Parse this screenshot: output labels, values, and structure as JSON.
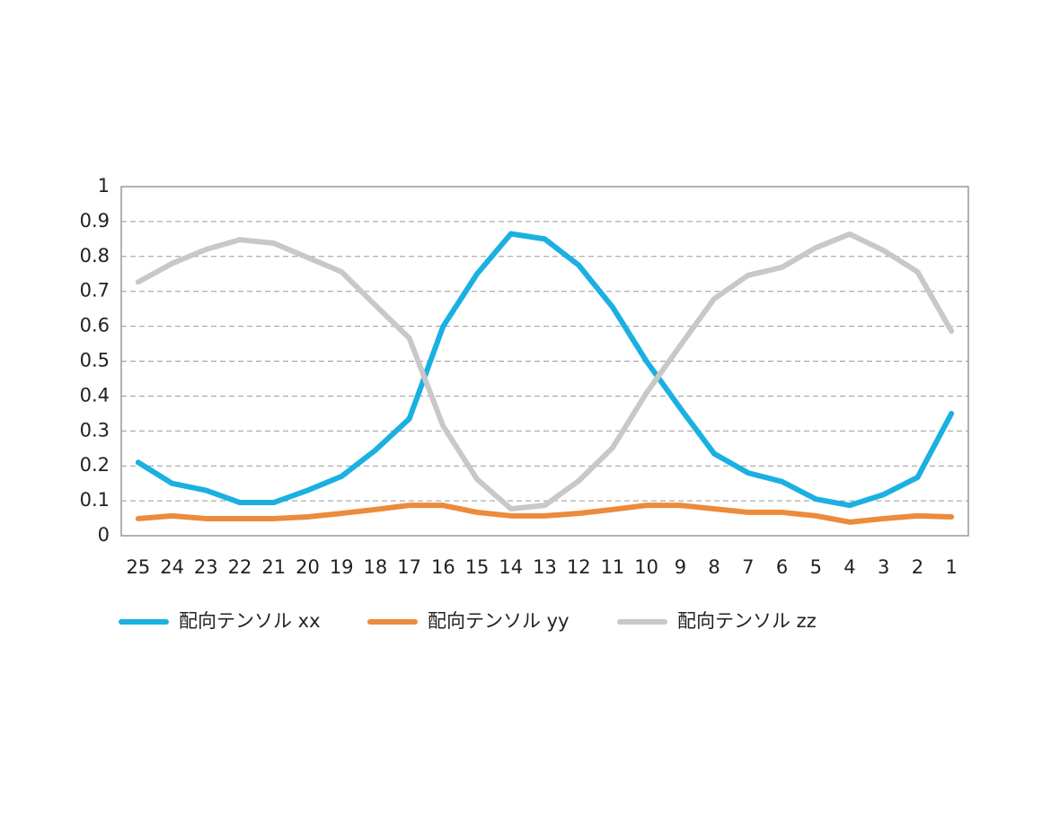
{
  "chart_data": {
    "type": "line",
    "categories": [
      "25",
      "24",
      "23",
      "22",
      "21",
      "20",
      "19",
      "18",
      "17",
      "16",
      "15",
      "14",
      "13",
      "12",
      "11",
      "10",
      "9",
      "8",
      "7",
      "6",
      "5",
      "4",
      "3",
      "2",
      "1"
    ],
    "series": [
      {
        "name": "配向テンソル xx",
        "color": "#1ab0e2",
        "values": [
          0.21,
          0.15,
          0.13,
          0.095,
          0.095,
          0.13,
          0.17,
          0.245,
          0.335,
          0.6,
          0.75,
          0.865,
          0.85,
          0.775,
          0.655,
          0.5,
          0.365,
          0.235,
          0.18,
          0.155,
          0.105,
          0.087,
          0.118,
          0.167,
          0.35
        ]
      },
      {
        "name": "配向テンソル yy",
        "color": "#ec8b3b",
        "values": [
          0.049,
          0.057,
          0.049,
          0.049,
          0.049,
          0.054,
          0.064,
          0.075,
          0.087,
          0.087,
          0.067,
          0.057,
          0.057,
          0.064,
          0.075,
          0.087,
          0.087,
          0.077,
          0.067,
          0.067,
          0.057,
          0.039,
          0.049,
          0.057,
          0.054
        ]
      },
      {
        "name": "配向テンソル zz",
        "color": "#c8c8c8",
        "values": [
          0.727,
          0.78,
          0.82,
          0.848,
          0.838,
          0.797,
          0.756,
          0.66,
          0.566,
          0.314,
          0.162,
          0.077,
          0.087,
          0.157,
          0.252,
          0.409,
          0.545,
          0.679,
          0.746,
          0.769,
          0.825,
          0.864,
          0.817,
          0.756,
          0.586
        ]
      }
    ],
    "ylim": [
      0,
      1
    ],
    "yticks": [
      0,
      0.1,
      0.2,
      0.3,
      0.4,
      0.5,
      0.6,
      0.7,
      0.8,
      0.9,
      1
    ],
    "grid": true,
    "legend": "bottom"
  }
}
